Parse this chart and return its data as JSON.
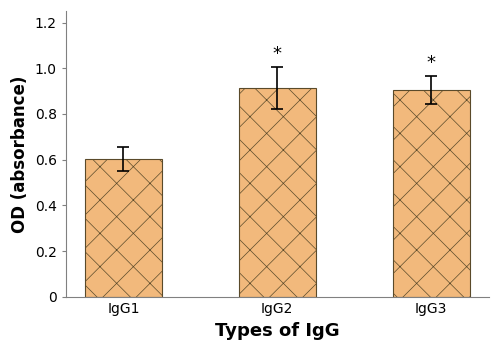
{
  "categories": [
    "IgG1",
    "IgG2",
    "IgG3"
  ],
  "values": [
    0.602,
    0.912,
    0.905
  ],
  "errors": [
    0.052,
    0.092,
    0.06
  ],
  "bar_color": "#F2B97C",
  "bar_edgecolor": "#5A4A2A",
  "hatch": "x",
  "hatch_color": "#BFA090",
  "ylim": [
    0,
    1.25
  ],
  "yticks": [
    0,
    0.2,
    0.4,
    0.6,
    0.8,
    1.0,
    1.2
  ],
  "xlabel": "Types of IgG",
  "ylabel": "OD (absorbance)",
  "xlabel_fontsize": 13,
  "ylabel_fontsize": 12,
  "tick_fontsize": 10,
  "bar_width": 0.5,
  "significance": [
    false,
    true,
    true
  ],
  "star_fontsize": 13,
  "errorbar_capsize": 4,
  "errorbar_linewidth": 1.2,
  "errorbar_color": "black",
  "figsize": [
    5.0,
    3.51
  ],
  "dpi": 100
}
